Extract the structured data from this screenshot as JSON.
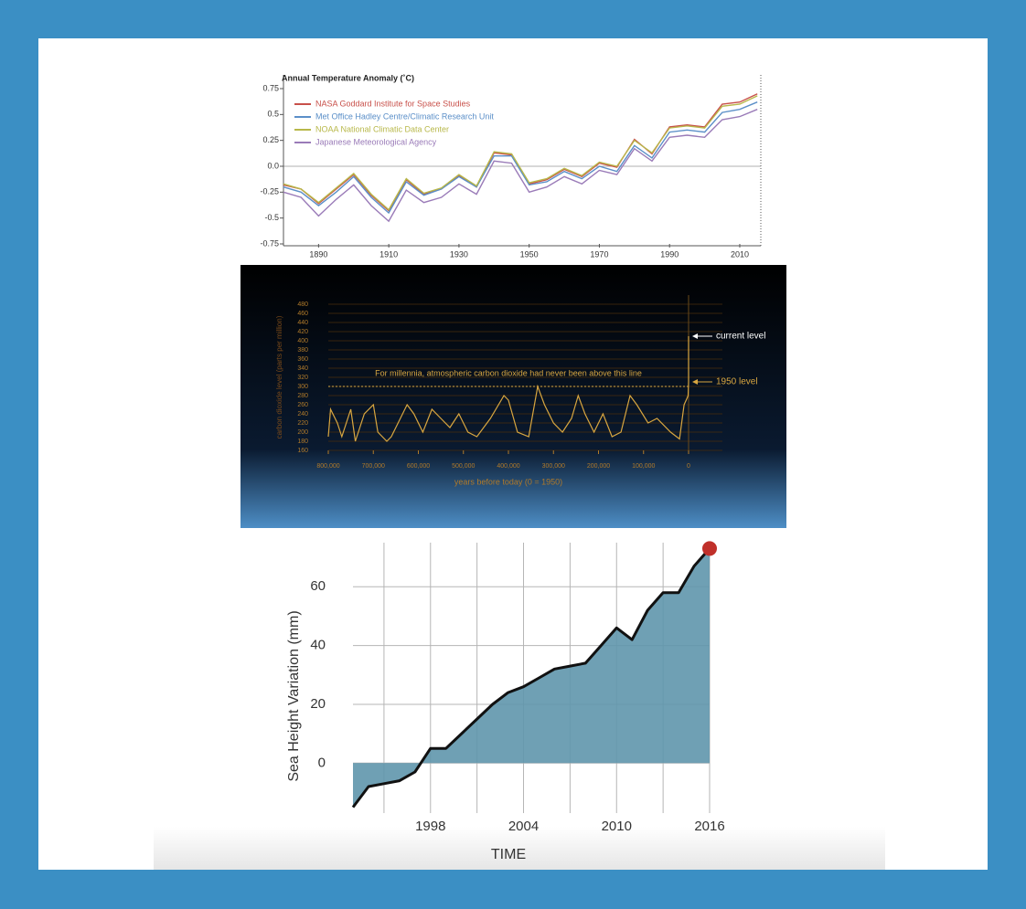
{
  "chart_data": [
    {
      "type": "line",
      "title": "Annual Temperature Anomaly (˚C)",
      "x": [
        1880,
        1885,
        1890,
        1895,
        1900,
        1905,
        1910,
        1915,
        1920,
        1925,
        1930,
        1935,
        1940,
        1945,
        1950,
        1955,
        1960,
        1965,
        1970,
        1975,
        1980,
        1985,
        1990,
        1995,
        2000,
        2005,
        2010,
        2015
      ],
      "series": [
        {
          "name": "NASA Goddard Institute for Space Studies",
          "color": "#c8504a",
          "values": [
            -0.18,
            -0.22,
            -0.36,
            -0.22,
            -0.08,
            -0.28,
            -0.43,
            -0.13,
            -0.27,
            -0.22,
            -0.09,
            -0.2,
            0.13,
            0.11,
            -0.17,
            -0.13,
            -0.03,
            -0.1,
            0.03,
            -0.01,
            0.26,
            0.12,
            0.38,
            0.4,
            0.38,
            0.6,
            0.62,
            0.7
          ]
        },
        {
          "name": "Met Office Hadley Centre/Climatic Research Unit",
          "color": "#5b8fc8",
          "values": [
            -0.2,
            -0.25,
            -0.38,
            -0.25,
            -0.1,
            -0.3,
            -0.45,
            -0.15,
            -0.28,
            -0.22,
            -0.1,
            -0.2,
            0.1,
            0.1,
            -0.18,
            -0.15,
            -0.05,
            -0.12,
            0.0,
            -0.05,
            0.2,
            0.08,
            0.33,
            0.35,
            0.33,
            0.52,
            0.55,
            0.62
          ]
        },
        {
          "name": "NOAA National Climatic Data Center",
          "color": "#b8b84a",
          "values": [
            -0.17,
            -0.22,
            -0.35,
            -0.21,
            -0.07,
            -0.27,
            -0.42,
            -0.12,
            -0.26,
            -0.21,
            -0.08,
            -0.19,
            0.14,
            0.12,
            -0.16,
            -0.12,
            -0.02,
            -0.09,
            0.04,
            0.0,
            0.25,
            0.13,
            0.37,
            0.39,
            0.37,
            0.58,
            0.6,
            0.68
          ]
        },
        {
          "name": "Japanese Meteorological Agency",
          "color": "#9a7bb8",
          "values": [
            -0.25,
            -0.3,
            -0.48,
            -0.32,
            -0.18,
            -0.38,
            -0.53,
            -0.23,
            -0.35,
            -0.3,
            -0.17,
            -0.27,
            0.05,
            0.03,
            -0.25,
            -0.2,
            -0.1,
            -0.17,
            -0.04,
            -0.08,
            0.17,
            0.05,
            0.28,
            0.3,
            0.28,
            0.45,
            0.48,
            0.55
          ]
        }
      ],
      "xlim": [
        1880,
        2016
      ],
      "ylim": [
        -0.75,
        0.75
      ],
      "xticks": [
        1890,
        1910,
        1930,
        1950,
        1970,
        1990,
        2010
      ],
      "yticks": [
        0.75,
        0.5,
        0.25,
        {
          "value": 0,
          "label": "0.0"
        },
        -0.25,
        -0.5,
        -0.75
      ]
    },
    {
      "type": "line",
      "color": "#d8a640",
      "y_label": "carbon dioxide level (parts per million)",
      "x_label": "years before today (0 = 1950)",
      "annotations": [
        "For millennia, atmospheric carbon dioxide had never been above this line",
        "current level",
        "1950 level"
      ],
      "threshold": 300,
      "x": [
        800000,
        795000,
        780000,
        770000,
        750000,
        740000,
        720000,
        700000,
        690000,
        670000,
        660000,
        640000,
        625000,
        610000,
        590000,
        570000,
        550000,
        530000,
        510000,
        490000,
        470000,
        440000,
        410000,
        400000,
        380000,
        355000,
        335000,
        320000,
        300000,
        280000,
        260000,
        245000,
        230000,
        210000,
        190000,
        170000,
        150000,
        130000,
        115000,
        90000,
        70000,
        40000,
        20000,
        10000,
        3000,
        1000,
        0,
        0
      ],
      "values": [
        190,
        250,
        220,
        190,
        250,
        180,
        240,
        260,
        200,
        180,
        190,
        230,
        260,
        240,
        200,
        250,
        230,
        210,
        240,
        200,
        190,
        230,
        280,
        270,
        200,
        190,
        300,
        260,
        220,
        200,
        230,
        280,
        240,
        200,
        240,
        190,
        200,
        280,
        260,
        220,
        230,
        200,
        185,
        260,
        275,
        280,
        310,
        410
      ],
      "xlim": [
        800000,
        0
      ],
      "ylim": [
        160,
        480
      ],
      "xticks": [
        {
          "value": 800000,
          "label": "800,000"
        },
        {
          "value": 700000,
          "label": "700,000"
        },
        {
          "value": 600000,
          "label": "600,000"
        },
        {
          "value": 500000,
          "label": "500,000"
        },
        {
          "value": 400000,
          "label": "400,000"
        },
        {
          "value": 300000,
          "label": "300,000"
        },
        {
          "value": 200000,
          "label": "200,000"
        },
        {
          "value": 100000,
          "label": "100,000"
        },
        0
      ],
      "yticks": [
        160,
        180,
        200,
        220,
        240,
        260,
        280,
        300,
        320,
        340,
        360,
        380,
        400,
        420,
        440,
        460,
        480
      ]
    },
    {
      "type": "area",
      "color": "#5f96ac",
      "line_color": "#111111",
      "marker_color": "#c0302a",
      "y_label": "Sea Height Variation (mm)",
      "x_label": "TIME",
      "x": [
        1993,
        1994,
        1995,
        1996,
        1997,
        1998,
        1999,
        2000,
        2001,
        2002,
        2003,
        2004,
        2005,
        2006,
        2007,
        2008,
        2009,
        2010,
        2011,
        2012,
        2013,
        2014,
        2015,
        2016
      ],
      "values": [
        -15,
        -8,
        -7,
        -6,
        -3,
        5,
        5,
        10,
        15,
        20,
        24,
        26,
        29,
        32,
        33,
        34,
        40,
        46,
        42,
        52,
        58,
        58,
        67,
        73
      ],
      "xlim": [
        1993,
        2016
      ],
      "ylim": [
        -17,
        75
      ],
      "xticks": [
        1998,
        2004,
        2010,
        2016
      ],
      "yticks": [
        0,
        20,
        40,
        60
      ],
      "grid": true
    }
  ]
}
